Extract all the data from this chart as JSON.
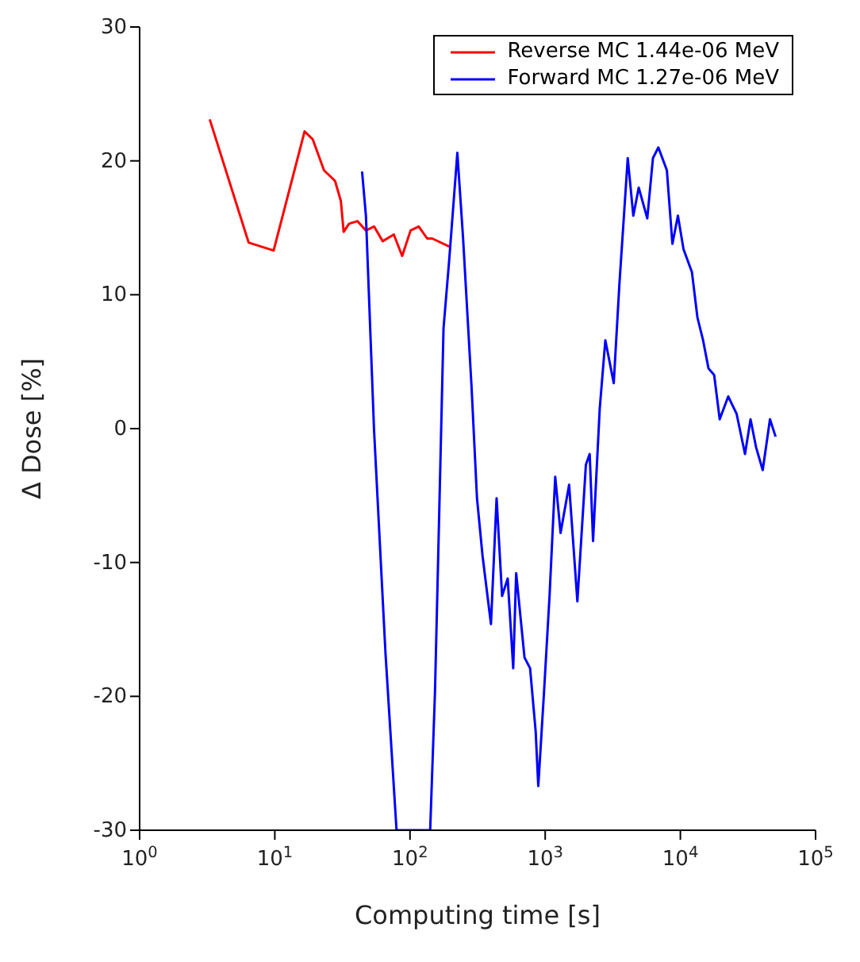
{
  "chart_data": {
    "type": "line",
    "xlabel": "Computing time [s]",
    "ylabel": "Δ Dose [%]",
    "log": "x",
    "xlim": [
      1,
      100000
    ],
    "xticks": [
      {
        "value": 1,
        "label": "10$^{0}$"
      },
      {
        "value": 10,
        "label": "10$^{1}$"
      },
      {
        "value": 100,
        "label": "10$^{2}$"
      },
      {
        "value": 1000,
        "label": "10$^{3}$"
      },
      {
        "value": 10000,
        "label": "10$^{4}$"
      },
      {
        "value": 100000,
        "label": "10$^{5}$"
      }
    ],
    "ylim": [
      -30,
      30
    ],
    "yticks": [
      -30,
      -20,
      -10,
      0,
      10,
      20,
      30
    ],
    "grid": false,
    "legend": "top right",
    "marker": "none",
    "line_style": "solid",
    "series": [
      {
        "name": "Reverse MC 1.44e-06 MeV",
        "color": "#ff0000",
        "x": [
          3.3,
          6.4,
          9.8,
          16.6,
          19.1,
          23.1,
          27.9,
          30.8,
          32.3,
          35.4,
          40.8,
          47.2,
          54.2,
          62.8,
          75.9,
          87.5,
          101,
          116,
          134,
          146,
          195
        ],
        "values": [
          23.1,
          13.9,
          13.3,
          22.2,
          21.6,
          19.3,
          18.5,
          17.0,
          14.7,
          15.3,
          15.5,
          14.8,
          15.1,
          14.0,
          14.5,
          12.9,
          14.8,
          15.1,
          14.2,
          14.2,
          13.6
        ]
      },
      {
        "name": "Forward MC 1.27e-06 MeV",
        "color": "#0000ff",
        "x": [
          44.2,
          47.2,
          54.2,
          65.8,
          79.5,
          141,
          153,
          161,
          177,
          195,
          224,
          247,
          285,
          313,
          344,
          397,
          437,
          480,
          528,
          580,
          610,
          703,
          773,
          850,
          889,
          980,
          1077,
          1186,
          1300,
          1503,
          1730,
          2000,
          2134,
          2260,
          2532,
          2786,
          3214,
          3540,
          4080,
          4486,
          4920,
          5690,
          6266,
          6873,
          7943,
          8730,
          9590,
          10550,
          12170,
          13370,
          14720,
          16140,
          17780,
          19540,
          22590,
          26060,
          30060,
          33040,
          36310,
          40650,
          46000,
          50600
        ],
        "values": [
          19.2,
          15.9,
          -0.1,
          -16.7,
          -30,
          -30,
          -19.7,
          -10.3,
          7.5,
          12.6,
          20.6,
          14.2,
          3.2,
          -5.2,
          -9.5,
          -14.6,
          -5.2,
          -12.5,
          -11.2,
          -17.9,
          -10.8,
          -17.1,
          -17.9,
          -22.6,
          -26.7,
          -19.7,
          -12.5,
          -3.6,
          -7.8,
          -4.2,
          -12.9,
          -2.7,
          -1.9,
          -8.4,
          1.5,
          6.6,
          3.4,
          10.8,
          20.2,
          15.9,
          18.0,
          15.7,
          20.2,
          21.0,
          19.3,
          13.8,
          15.9,
          13.4,
          11.7,
          8.3,
          6.6,
          4.5,
          4.0,
          0.7,
          2.4,
          1.1,
          -1.9,
          0.7,
          -1.4,
          -3.1,
          0.7,
          -0.6
        ]
      }
    ]
  }
}
